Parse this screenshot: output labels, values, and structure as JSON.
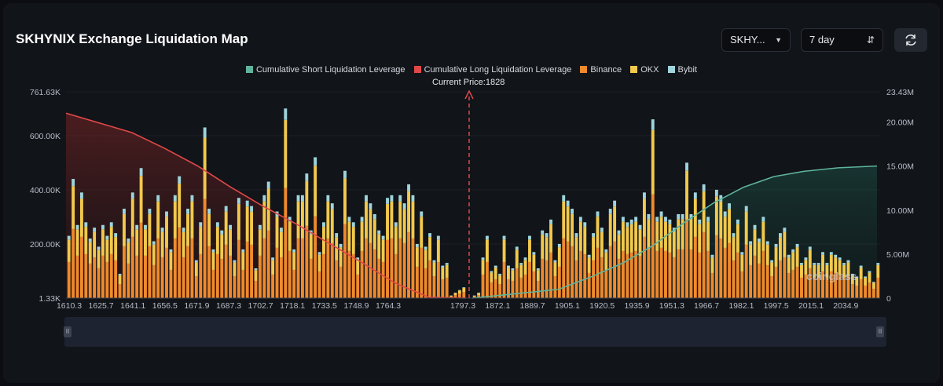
{
  "header": {
    "title": "SKHYNIX Exchange Liquidation Map",
    "symbol_select": "SKHY...",
    "period_select": "7 day"
  },
  "watermark": "coinglass",
  "chart_data": {
    "type": "bar",
    "current_price_label": "Current Price:1828",
    "current_price": 1828,
    "legend": [
      {
        "name": "Cumulative Short Liquidation Leverage",
        "color": "#5fb49c"
      },
      {
        "name": "Cumulative Long Liquidation Leverage",
        "color": "#e04848"
      },
      {
        "name": "Binance",
        "color": "#ef8a2c"
      },
      {
        "name": "OKX",
        "color": "#f2c94c"
      },
      {
        "name": "Bybit",
        "color": "#9fd4dc"
      }
    ],
    "y_left_ticks": [
      "761.63K",
      "600.00K",
      "400.00K",
      "200.00K",
      "1.33K"
    ],
    "y_right_ticks": [
      "23.43M",
      "20.00M",
      "15.00M",
      "10.00M",
      "5.00M",
      "0"
    ],
    "x_tick_labels": [
      "1610.3",
      "1625.7",
      "1641.1",
      "1656.5",
      "1671.9",
      "1687.3",
      "1702.7",
      "1718.1",
      "1733.5",
      "1748.9",
      "1764.3",
      "1797.3",
      "1872.1",
      "1889.7",
      "1905.1",
      "1920.5",
      "1935.9",
      "1951.3",
      "1966.7",
      "1982.1",
      "1997.5",
      "2015.1",
      "2034.9"
    ],
    "ylim_left": [
      1330,
      761630
    ],
    "ylim_right": [
      0,
      23430000
    ],
    "left_bars_total_k": [
      230,
      440,
      270,
      390,
      280,
      220,
      260,
      190,
      270,
      230,
      280,
      240,
      90,
      330,
      220,
      390,
      270,
      480,
      270,
      330,
      210,
      380,
      260,
      320,
      180,
      380,
      450,
      260,
      330,
      380,
      140,
      280,
      630,
      330,
      180,
      280,
      250,
      340,
      270,
      140,
      370,
      180,
      360,
      340,
      110,
      270,
      380,
      430,
      150,
      320,
      260,
      700,
      300,
      180,
      380,
      380,
      460,
      250,
      520,
      170,
      280,
      380,
      350,
      240,
      200,
      470,
      300,
      280,
      150,
      300,
      380,
      350,
      310,
      250,
      230,
      370,
      380,
      280,
      380,
      350,
      420,
      380,
      200,
      320,
      190,
      240,
      140,
      230,
      120,
      130,
      10,
      20,
      30,
      40
    ],
    "right_bars_total_k": [
      10,
      20,
      150,
      230,
      100,
      120,
      90,
      230,
      120,
      110,
      190,
      130,
      150,
      230,
      170,
      110,
      250,
      240,
      290,
      140,
      200,
      380,
      360,
      330,
      240,
      300,
      280,
      160,
      240,
      320,
      260,
      180,
      330,
      360,
      250,
      300,
      280,
      290,
      300,
      270,
      390,
      310,
      660,
      300,
      320,
      300,
      290,
      260,
      310,
      310,
      500,
      310,
      390,
      290,
      420,
      300,
      160,
      400,
      380,
      320,
      350,
      240,
      290,
      170,
      340,
      210,
      270,
      220,
      300,
      210,
      140,
      200,
      240,
      260,
      160,
      180,
      200,
      130,
      150,
      190,
      130,
      130,
      170,
      130,
      170,
      160,
      150,
      130,
      140,
      90,
      80,
      120,
      80,
      100,
      60,
      130
    ],
    "long_cumulative_m": [
      [
        1610.3,
        21.0
      ],
      [
        1641.1,
        18.8
      ],
      [
        1656.5,
        17.0
      ],
      [
        1671.9,
        15.0
      ],
      [
        1687.3,
        12.6
      ],
      [
        1702.7,
        10.4
      ],
      [
        1718.1,
        8.4
      ],
      [
        1733.5,
        6.2
      ],
      [
        1748.9,
        4.0
      ],
      [
        1764.3,
        1.7
      ],
      [
        1780,
        0.1
      ],
      [
        1797.3,
        0
      ]
    ],
    "short_cumulative_m": [
      [
        1828,
        0
      ],
      [
        1872.1,
        1.0
      ],
      [
        1889.7,
        2.5
      ],
      [
        1905.1,
        4.0
      ],
      [
        1920.5,
        6.0
      ],
      [
        1935.9,
        8.5
      ],
      [
        1951.3,
        10.8
      ],
      [
        1966.7,
        12.6
      ],
      [
        1982.1,
        13.8
      ],
      [
        1997.5,
        14.4
      ],
      [
        2015.1,
        14.8
      ],
      [
        2034.9,
        15.0
      ]
    ]
  }
}
